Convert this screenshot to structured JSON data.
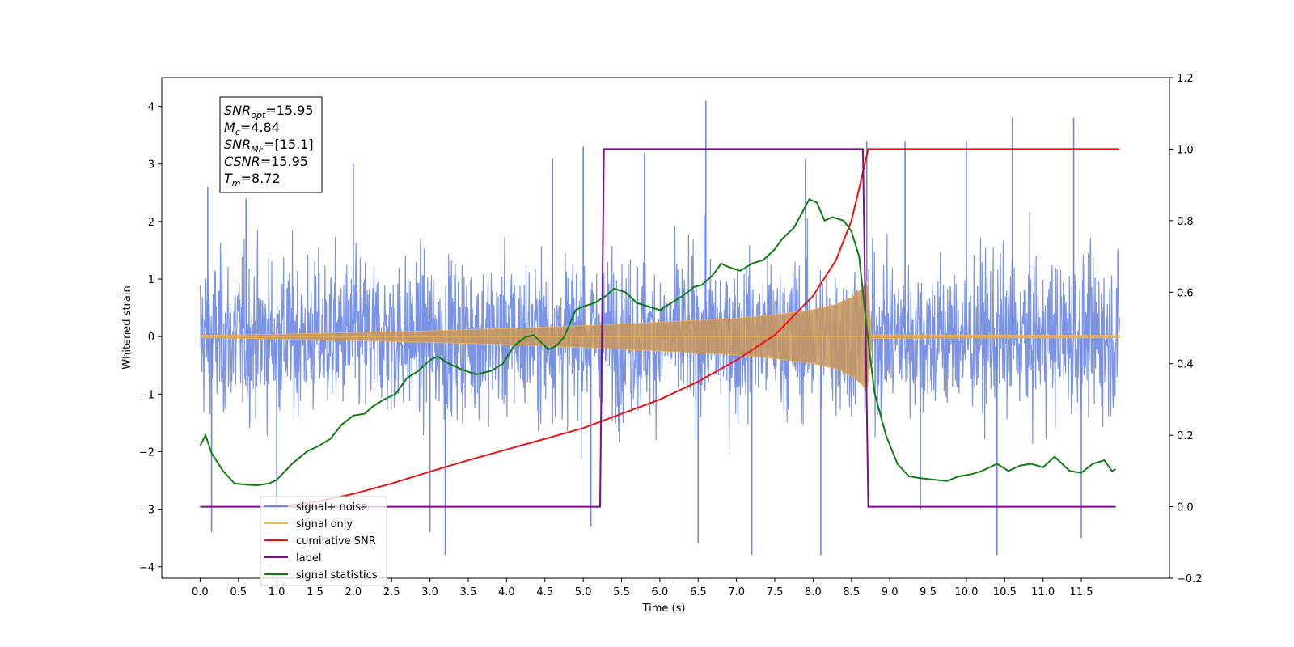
{
  "chart_data": {
    "type": "line",
    "title": "",
    "xlabel": "Time (s)",
    "ylabel": "Whitened strain",
    "y2label": "",
    "xlim": [
      -0.5,
      12.65
    ],
    "ylim": [
      -4.2,
      4.5
    ],
    "y2lim": [
      -0.2,
      1.2
    ],
    "xticks": [
      "0.0",
      "0.5",
      "1.0",
      "1.5",
      "2.0",
      "2.5",
      "3.0",
      "3.5",
      "4.0",
      "4.5",
      "5.0",
      "5.5",
      "6.0",
      "6.5",
      "7.0",
      "7.5",
      "8.0",
      "8.5",
      "9.0",
      "9.5",
      "10.0",
      "10.5",
      "11.0",
      "11.5"
    ],
    "yticks": [
      "4",
      "3",
      "2",
      "1",
      "0",
      "−1",
      "−2",
      "−3",
      "−4"
    ],
    "y2ticks": [
      "1.2",
      "1.0",
      "0.8",
      "0.6",
      "0.4",
      "0.2",
      "0.0",
      "−0.2"
    ],
    "grid": false,
    "legend_position": "lower-left",
    "colors": {
      "noise": "#6b87e4",
      "signal": "#f5b74a",
      "snr": "#ee1111",
      "label": "#7a0f8a",
      "stats": "#0e7e0e"
    },
    "annotation": {
      "lines": [
        {
          "name": "SNR",
          "sub": "opt",
          "value": "=15.95"
        },
        {
          "name": "M",
          "sub": "c",
          "value": "=4.84"
        },
        {
          "name": "SNR",
          "sub": "MF",
          "value": "=[15.1]"
        },
        {
          "name": "CSNR",
          "sub": "",
          "value": "=15.95"
        },
        {
          "name": "T",
          "sub": "m",
          "value": "=8.72"
        }
      ]
    },
    "series": [
      {
        "name": "signal+ noise",
        "axis": "left",
        "description": "whitened strain, noise band roughly ±2.3 with spikes up to 4.1 and down to -3.8",
        "x_range": [
          0.0,
          12.0
        ],
        "spikes": [
          [
            0.1,
            2.6
          ],
          [
            0.15,
            -3.4
          ],
          [
            0.6,
            2.4
          ],
          [
            3.2,
            -3.8
          ],
          [
            3.0,
            -3.4
          ],
          [
            5.0,
            3.3
          ],
          [
            5.1,
            -3.3
          ],
          [
            5.8,
            3.2
          ],
          [
            6.6,
            4.1
          ],
          [
            6.5,
            -3.6
          ],
          [
            7.2,
            -3.8
          ],
          [
            8.1,
            -3.8
          ],
          [
            8.7,
            3.4
          ],
          [
            9.2,
            3.4
          ],
          [
            10.0,
            3.4
          ],
          [
            10.6,
            3.8
          ],
          [
            10.4,
            -3.8
          ],
          [
            11.4,
            3.8
          ],
          [
            11.5,
            -3.5
          ],
          [
            2.0,
            3.0
          ],
          [
            4.6,
            3.1
          ],
          [
            7.9,
            3.1
          ],
          [
            1.0,
            -3.0
          ],
          [
            9.4,
            -3.0
          ]
        ]
      },
      {
        "name": "signal only",
        "axis": "left",
        "description": "chirp envelope growing until merger at 8.72 s",
        "x": [
          0.0,
          1.0,
          2.0,
          3.0,
          4.0,
          5.0,
          6.0,
          7.0,
          7.5,
          8.0,
          8.3,
          8.5,
          8.65,
          8.72,
          8.75,
          12.0
        ],
        "amplitude": [
          0.02,
          0.04,
          0.07,
          0.1,
          0.14,
          0.19,
          0.25,
          0.32,
          0.38,
          0.47,
          0.56,
          0.68,
          0.85,
          1.0,
          0.03,
          0.02
        ]
      },
      {
        "name": "cumilative SNR",
        "axis": "right",
        "x": [
          1.0,
          1.5,
          2.0,
          2.5,
          3.0,
          3.5,
          4.0,
          4.5,
          5.0,
          5.5,
          6.0,
          6.5,
          7.0,
          7.5,
          8.0,
          8.3,
          8.5,
          8.6,
          8.72,
          12.0
        ],
        "values": [
          0.0,
          0.013,
          0.036,
          0.065,
          0.098,
          0.13,
          0.16,
          0.19,
          0.22,
          0.26,
          0.3,
          0.35,
          0.41,
          0.48,
          0.59,
          0.69,
          0.8,
          0.89,
          1.0,
          1.0
        ]
      },
      {
        "name": "label",
        "axis": "right",
        "x": [
          0.0,
          5.22,
          5.27,
          8.65,
          8.72,
          11.95
        ],
        "values": [
          0.0,
          0.0,
          1.0,
          1.0,
          0.0,
          0.0
        ]
      },
      {
        "name": "signal statistics",
        "axis": "right",
        "x": [
          0.0,
          0.07,
          0.15,
          0.3,
          0.45,
          0.6,
          0.75,
          0.9,
          1.0,
          1.2,
          1.4,
          1.55,
          1.7,
          1.85,
          2.0,
          2.15,
          2.25,
          2.4,
          2.55,
          2.7,
          2.85,
          3.0,
          3.1,
          3.25,
          3.4,
          3.6,
          3.8,
          3.95,
          4.1,
          4.25,
          4.35,
          4.45,
          4.55,
          4.65,
          4.75,
          4.9,
          5.0,
          5.15,
          5.3,
          5.4,
          5.55,
          5.7,
          5.85,
          6.0,
          6.15,
          6.3,
          6.45,
          6.55,
          6.7,
          6.8,
          6.9,
          7.05,
          7.2,
          7.35,
          7.5,
          7.6,
          7.75,
          7.85,
          7.95,
          8.05,
          8.15,
          8.25,
          8.4,
          8.5,
          8.6,
          8.7,
          8.8,
          8.95,
          9.1,
          9.25,
          9.4,
          9.6,
          9.75,
          9.9,
          10.05,
          10.2,
          10.4,
          10.55,
          10.7,
          10.85,
          11.0,
          11.15,
          11.25,
          11.35,
          11.5,
          11.65,
          11.8,
          11.9,
          11.95
        ],
        "values": [
          0.17,
          0.2,
          0.15,
          0.1,
          0.065,
          0.062,
          0.06,
          0.065,
          0.075,
          0.12,
          0.155,
          0.17,
          0.19,
          0.23,
          0.255,
          0.26,
          0.28,
          0.3,
          0.315,
          0.36,
          0.38,
          0.41,
          0.42,
          0.4,
          0.385,
          0.37,
          0.38,
          0.4,
          0.45,
          0.475,
          0.48,
          0.46,
          0.44,
          0.45,
          0.475,
          0.55,
          0.56,
          0.57,
          0.59,
          0.61,
          0.6,
          0.57,
          0.56,
          0.55,
          0.57,
          0.59,
          0.615,
          0.62,
          0.65,
          0.68,
          0.67,
          0.66,
          0.68,
          0.69,
          0.72,
          0.75,
          0.78,
          0.82,
          0.86,
          0.85,
          0.8,
          0.81,
          0.8,
          0.77,
          0.7,
          0.5,
          0.32,
          0.2,
          0.12,
          0.085,
          0.08,
          0.075,
          0.072,
          0.085,
          0.09,
          0.1,
          0.12,
          0.1,
          0.115,
          0.12,
          0.11,
          0.14,
          0.12,
          0.1,
          0.095,
          0.12,
          0.13,
          0.1,
          0.105
        ]
      }
    ]
  }
}
